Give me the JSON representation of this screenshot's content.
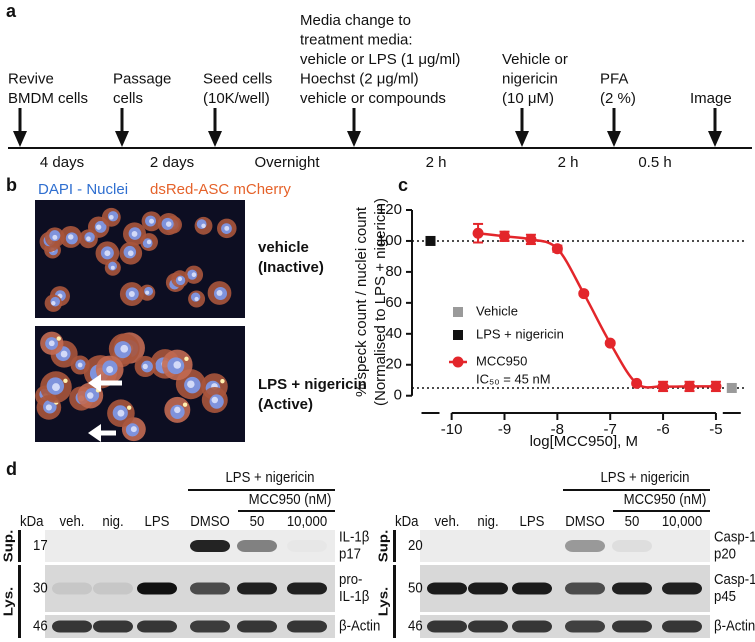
{
  "panel_a": {
    "label": "a",
    "steps": [
      [
        "Revive",
        "BMDM cells"
      ],
      [
        "Passage",
        "cells"
      ],
      [
        "Seed cells",
        "(10K/well)"
      ],
      [
        "Media change to",
        "treatment media:",
        "vehicle or LPS (1 μg/ml)",
        "Hoechst (2 μg/ml)",
        "vehicle or compounds"
      ],
      [
        "Vehicle or",
        "nigericin",
        "(10 μM)"
      ],
      [
        "PFA",
        "(2 %)"
      ],
      [
        "Image"
      ]
    ],
    "intervals": [
      "4 days",
      "2 days",
      "Overnight",
      "2 h",
      "2 h",
      "0.5 h"
    ]
  },
  "panel_b": {
    "label": "b",
    "stains": [
      "DAPI - Nuclei",
      "dsRed-ASC mCherry"
    ],
    "conditions": [
      [
        "vehicle",
        "(Inactive)"
      ],
      [
        "LPS + nigericin",
        "(Active)"
      ]
    ]
  },
  "panel_c_label": "c",
  "chart_data": {
    "type": "scatter",
    "ylabel": [
      "% speck count / nuclei count",
      "(Normalised to LPS + nigericin)"
    ],
    "xlabel": "log[MCC950], M",
    "xlim": [
      -10.75,
      -4.45
    ],
    "xticks": [
      -10,
      -9,
      -8,
      -7,
      -6,
      -5
    ],
    "ylim": [
      -6,
      120
    ],
    "yticks": [
      0,
      20,
      40,
      60,
      80,
      100,
      120
    ],
    "reference_lines": [
      100,
      5
    ],
    "series": [
      {
        "name": "Vehicle",
        "color": "#9a9a9a",
        "marker": "square",
        "x": [
          -4.7
        ],
        "values": [
          5
        ]
      },
      {
        "name": "LPS + nigericin",
        "color": "#111111",
        "marker": "square",
        "x": [
          -10.4
        ],
        "values": [
          100
        ]
      },
      {
        "name": "MCC950",
        "color": "#e3262b",
        "marker": "circle",
        "x": [
          -9.5,
          -9,
          -8.5,
          -8,
          -7.5,
          -7,
          -6.5,
          -6,
          -5.5,
          -5
        ],
        "values": [
          105,
          103,
          101,
          95,
          66,
          34,
          8,
          6,
          6,
          6
        ],
        "errors": [
          6,
          3,
          3,
          2,
          1,
          1,
          1,
          3,
          3,
          3
        ]
      }
    ],
    "annotation": "IC₅₀ = 45 nM"
  },
  "panel_d": {
    "label": "d",
    "blots": [
      {
        "treatment_header": "LPS + nigericin",
        "compound_header": "MCC950 (nM)",
        "kda_header": "kDa",
        "lanes": [
          "veh.",
          "nig.",
          "LPS",
          "DMSO",
          "50",
          "10,000"
        ],
        "fractions": [
          "Sup.",
          "Lys."
        ],
        "kda": [
          "17",
          "30",
          "46"
        ],
        "proteins": [
          [
            "IL-1β",
            "p17"
          ],
          [
            "pro-",
            "IL-1β"
          ],
          [
            "β-Actin"
          ]
        ]
      },
      {
        "treatment_header": "LPS + nigericin",
        "compound_header": "MCC950 (nM)",
        "kda_header": "kDa",
        "lanes": [
          "veh.",
          "nig.",
          "LPS",
          "DMSO",
          "50",
          "10,000"
        ],
        "fractions": [
          "Sup.",
          "Lys."
        ],
        "kda": [
          "20",
          "50",
          "46"
        ],
        "proteins": [
          [
            "Casp-1",
            "p20"
          ],
          [
            "Casp-1",
            "p45"
          ],
          [
            "β-Actin"
          ]
        ]
      }
    ]
  }
}
